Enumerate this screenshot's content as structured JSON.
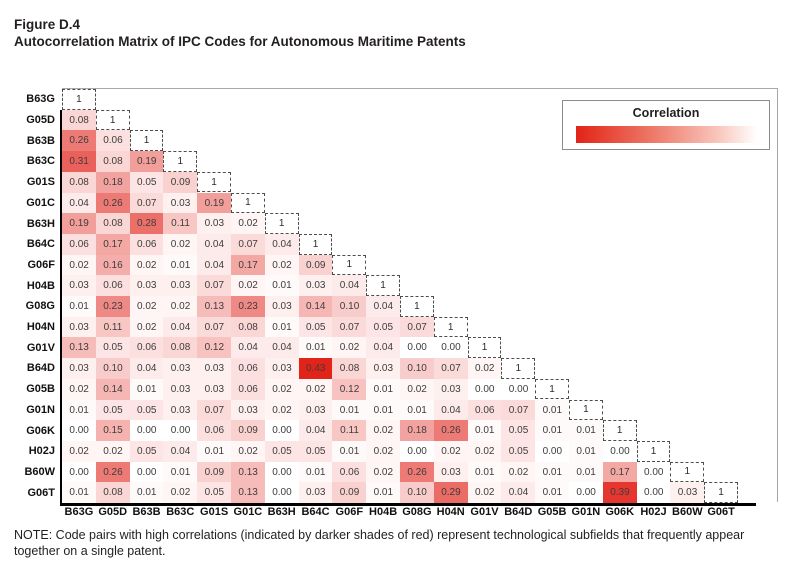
{
  "figure": {
    "label": "Figure D.4",
    "title": "Autocorrelation Matrix of IPC Codes for Autonomous Maritime Patents",
    "note": "NOTE: Code pairs with high correlations (indicated by darker shades of red) represent technological subfields that frequently appear together on a single patent."
  },
  "legend": {
    "title": "Correlation"
  },
  "colors": {
    "max_red": "#e2231a",
    "min_white": "#ffffff",
    "axis_black": "#000000",
    "plot_border_gray": "#a8a8a8"
  },
  "chart_data": {
    "type": "heatmap",
    "subtype": "lower-triangular-correlation-matrix",
    "title": "Autocorrelation Matrix of IPC Codes for Autonomous Maritime Patents",
    "legend": {
      "title": "Correlation",
      "position": "top-right",
      "gradient": [
        "#e2231a",
        "#ffffff"
      ]
    },
    "color_scale": {
      "min": 0,
      "max": 0.43,
      "min_color": "#ffffff",
      "max_color": "#e2231a"
    },
    "labels": [
      "B63G",
      "G05D",
      "B63B",
      "B63C",
      "G01S",
      "G01C",
      "B63H",
      "B64C",
      "G06F",
      "H04B",
      "G08G",
      "H04N",
      "G01V",
      "B64D",
      "G05B",
      "G01N",
      "G06K",
      "H02J",
      "B60W",
      "G06T"
    ],
    "matrix": [
      [
        1
      ],
      [
        0.08,
        1
      ],
      [
        0.26,
        0.06,
        1
      ],
      [
        0.31,
        0.08,
        0.19,
        1
      ],
      [
        0.08,
        0.18,
        0.05,
        0.09,
        1
      ],
      [
        0.04,
        0.26,
        0.07,
        0.03,
        0.19,
        1
      ],
      [
        0.19,
        0.08,
        0.28,
        0.11,
        0.03,
        0.02,
        1
      ],
      [
        0.06,
        0.17,
        0.06,
        0.02,
        0.04,
        0.07,
        0.04,
        1
      ],
      [
        0.02,
        0.16,
        0.02,
        0.01,
        0.04,
        0.17,
        0.02,
        0.09,
        1
      ],
      [
        0.03,
        0.06,
        0.03,
        0.03,
        0.07,
        0.02,
        0.01,
        0.03,
        0.04,
        1
      ],
      [
        0.01,
        0.23,
        0.02,
        0.02,
        0.13,
        0.23,
        0.03,
        0.14,
        0.1,
        0.04,
        1
      ],
      [
        0.03,
        0.11,
        0.02,
        0.04,
        0.07,
        0.08,
        0.01,
        0.05,
        0.07,
        0.05,
        0.07,
        1
      ],
      [
        0.13,
        0.05,
        0.06,
        0.08,
        0.12,
        0.04,
        0.04,
        0.01,
        0.02,
        0.04,
        0.0,
        0.0,
        1
      ],
      [
        0.03,
        0.1,
        0.04,
        0.03,
        0.03,
        0.06,
        0.03,
        0.43,
        0.08,
        0.03,
        0.1,
        0.07,
        0.02,
        1
      ],
      [
        0.02,
        0.14,
        0.01,
        0.03,
        0.03,
        0.06,
        0.02,
        0.02,
        0.12,
        0.01,
        0.02,
        0.03,
        0.0,
        0.0,
        1
      ],
      [
        0.01,
        0.05,
        0.05,
        0.03,
        0.07,
        0.03,
        0.02,
        0.03,
        0.01,
        0.01,
        0.01,
        0.04,
        0.06,
        0.07,
        0.01,
        1
      ],
      [
        0.0,
        0.15,
        0.0,
        0.0,
        0.06,
        0.09,
        0.0,
        0.04,
        0.11,
        0.02,
        0.18,
        0.26,
        0.01,
        0.05,
        0.01,
        0.01,
        1
      ],
      [
        0.02,
        0.02,
        0.05,
        0.04,
        0.01,
        0.02,
        0.05,
        0.05,
        0.01,
        0.02,
        0.0,
        0.02,
        0.02,
        0.05,
        0.0,
        0.01,
        0.0,
        1
      ],
      [
        0.0,
        0.26,
        0.0,
        0.01,
        0.09,
        0.13,
        0.0,
        0.01,
        0.06,
        0.02,
        0.26,
        0.03,
        0.01,
        0.02,
        0.01,
        0.01,
        0.17,
        0.0,
        1
      ],
      [
        0.01,
        0.08,
        0.01,
        0.02,
        0.05,
        0.13,
        0.0,
        0.03,
        0.09,
        0.01,
        0.1,
        0.29,
        0.02,
        0.04,
        0.01,
        0.0,
        0.39,
        0.0,
        0.03,
        1
      ]
    ]
  }
}
